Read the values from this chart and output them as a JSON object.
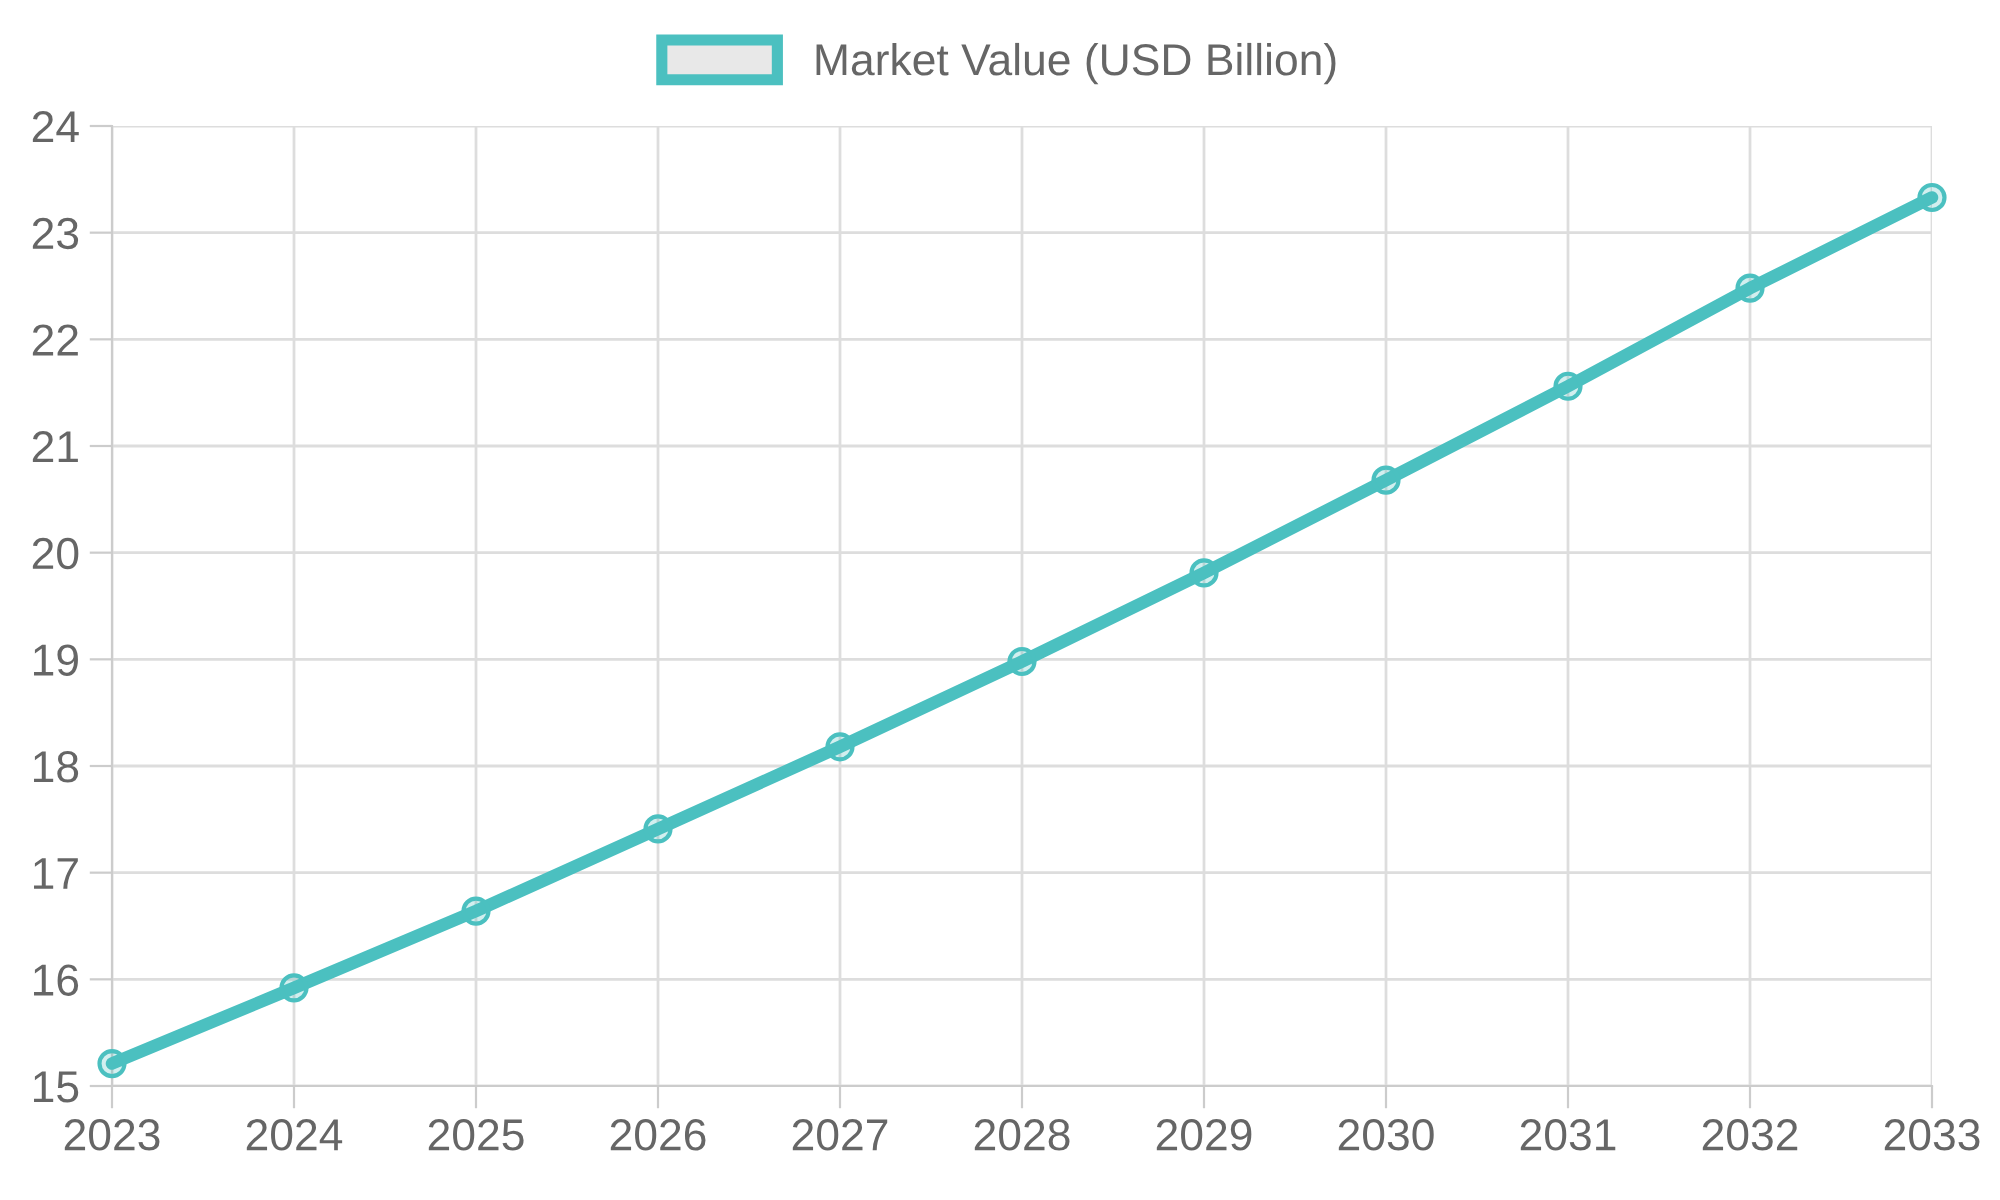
{
  "chart_data": {
    "type": "line",
    "categories": [
      "2023",
      "2024",
      "2025",
      "2026",
      "2027",
      "2028",
      "2029",
      "2030",
      "2031",
      "2032",
      "2033"
    ],
    "series": [
      {
        "name": "Market Value (USD Billion)",
        "color": "#4bc0c0",
        "values": [
          15.21,
          15.92,
          16.64,
          17.41,
          18.18,
          18.98,
          19.81,
          20.68,
          21.56,
          22.48,
          23.33
        ]
      }
    ],
    "ylim": [
      15,
      24
    ],
    "yticks": [
      15,
      16,
      17,
      18,
      19,
      20,
      21,
      22,
      23,
      24
    ],
    "grid": true,
    "legend": "top",
    "marker": "circle",
    "line_style": "solid"
  }
}
